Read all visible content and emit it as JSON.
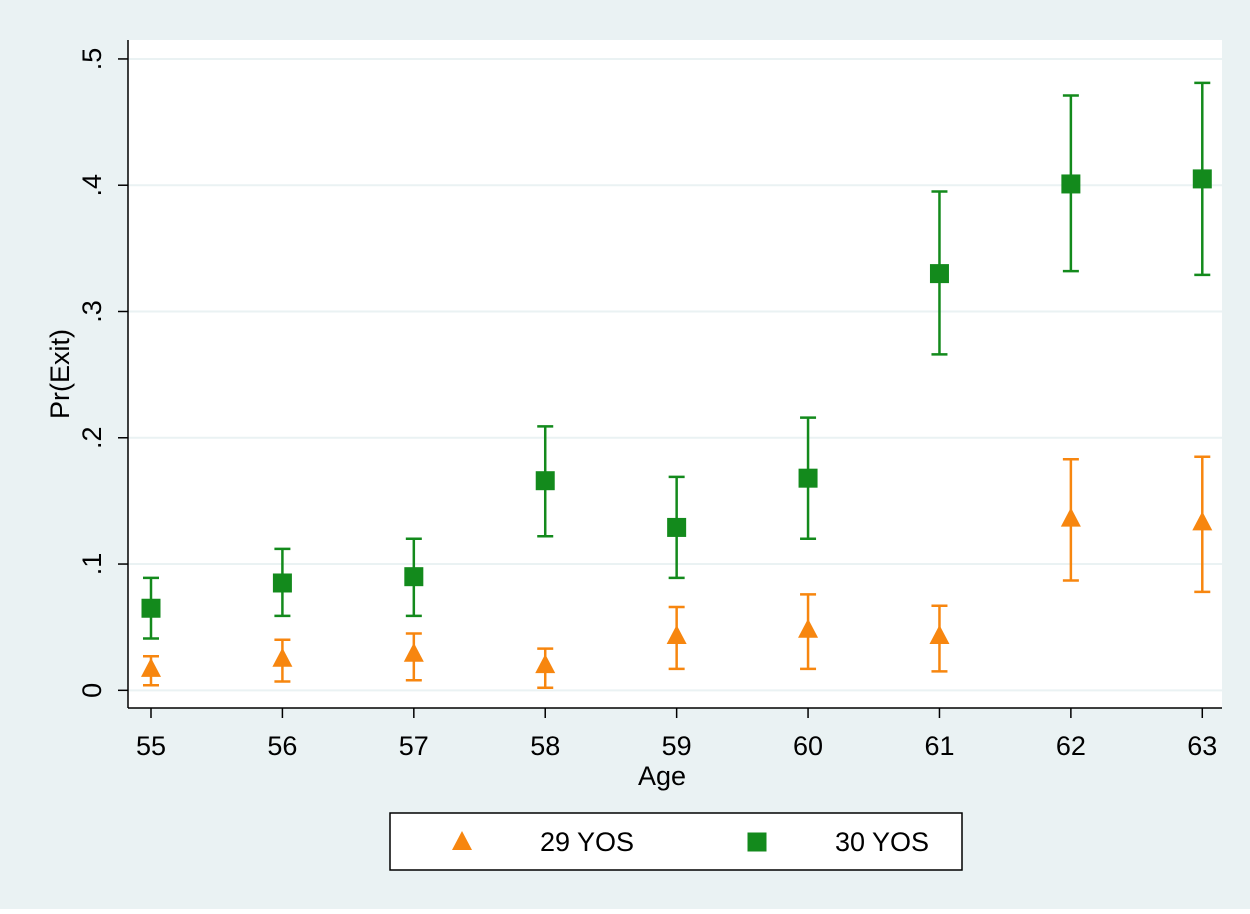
{
  "chart_data": {
    "type": "scatter",
    "x_label": "Age",
    "y_label": "Pr(Exit)",
    "x": [
      55,
      56,
      57,
      58,
      59,
      60,
      61,
      62,
      63
    ],
    "xlim": [
      54.825,
      63.15
    ],
    "xticks": [
      55,
      56,
      57,
      58,
      59,
      60,
      61,
      62,
      63
    ],
    "ylim": [
      -0.014,
      0.515
    ],
    "yticks": [
      0,
      {
        "value": 0.1,
        "label": ".1"
      },
      {
        "value": 0.2,
        "label": ".2"
      },
      {
        "value": 0.3,
        "label": ".3"
      },
      {
        "value": 0.4,
        "label": ".4"
      },
      {
        "value": 0.5,
        "label": ".5"
      }
    ],
    "grid": true,
    "series": [
      {
        "name": "29 YOS",
        "color": "#f7860f",
        "marker": "triangle",
        "values": [
          0.017,
          0.025,
          0.029,
          0.02,
          0.043,
          0.048,
          0.043,
          0.136,
          0.133
        ],
        "lower": [
          0.004,
          0.007,
          0.008,
          0.002,
          0.017,
          0.017,
          0.015,
          0.087,
          0.078
        ],
        "upper": [
          0.027,
          0.04,
          0.045,
          0.033,
          0.066,
          0.076,
          0.067,
          0.183,
          0.185
        ]
      },
      {
        "name": "30 YOS",
        "color": "#138a1c",
        "marker": "square",
        "values": [
          0.065,
          0.085,
          0.09,
          0.166,
          0.129,
          0.168,
          0.33,
          0.401,
          0.405
        ],
        "lower": [
          0.041,
          0.059,
          0.059,
          0.122,
          0.089,
          0.12,
          0.266,
          0.332,
          0.329
        ],
        "upper": [
          0.089,
          0.112,
          0.12,
          0.209,
          0.169,
          0.216,
          0.395,
          0.471,
          0.481
        ]
      }
    ]
  }
}
